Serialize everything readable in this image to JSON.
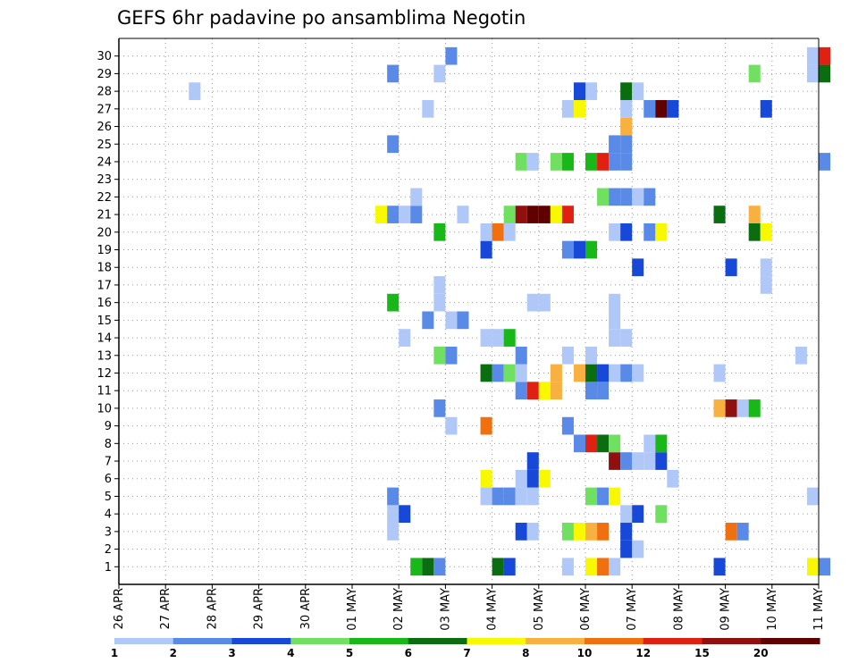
{
  "chart_data": {
    "type": "heatmap",
    "title": "GEFS 6hr padavine po ansamblima Negotin",
    "xlabel": "",
    "ylabel": "",
    "x_tick_labels": [
      "26 APR",
      "27 APR",
      "28 APR",
      "29 APR",
      "30 APR",
      "01 MAY",
      "02 MAY",
      "03 MAY",
      "04 MAY",
      "05 MAY",
      "06 MAY",
      "07 MAY",
      "08 MAY",
      "09 MAY",
      "10 MAY",
      "11 MAY"
    ],
    "y_tick_labels": [
      "1",
      "2",
      "3",
      "4",
      "5",
      "6",
      "7",
      "8",
      "9",
      "10",
      "11",
      "12",
      "13",
      "14",
      "15",
      "16",
      "17",
      "18",
      "19",
      "20",
      "21",
      "22",
      "23",
      "24",
      "25",
      "26",
      "27",
      "28",
      "29",
      "30"
    ],
    "x_unit": "6-hour steps from 26 APR 00Z",
    "x_range_steps": [
      0,
      60
    ],
    "y_range_members": [
      0,
      31
    ],
    "grid": true,
    "colorbar": {
      "labels": [
        "1",
        "2",
        "3",
        "4",
        "5",
        "6",
        "7",
        "8",
        "10",
        "12",
        "15",
        "20"
      ],
      "colors": [
        "#b0c8f8",
        "#5a8ae8",
        "#1848d8",
        "#70e060",
        "#18b818",
        "#0a6e10",
        "#f8f800",
        "#f8b040",
        "#f07010",
        "#e02010",
        "#901010",
        "#600000"
      ]
    },
    "series": [
      {
        "member": 1,
        "cells": [
          [
            25.5,
            5
          ],
          [
            26.5,
            6
          ],
          [
            27.5,
            2
          ],
          [
            32.5,
            6
          ],
          [
            33.5,
            3
          ],
          [
            38.5,
            1
          ],
          [
            40.5,
            7
          ],
          [
            41.5,
            9
          ],
          [
            42.5,
            1
          ],
          [
            51.5,
            3
          ],
          [
            59.5,
            7
          ],
          [
            60.5,
            2
          ]
        ]
      },
      {
        "member": 2,
        "cells": [
          [
            43.5,
            3
          ],
          [
            44.5,
            1
          ]
        ]
      },
      {
        "member": 3,
        "cells": [
          [
            23.5,
            1
          ],
          [
            34.5,
            3
          ],
          [
            35.5,
            1
          ],
          [
            38.5,
            4
          ],
          [
            39.5,
            7
          ],
          [
            40.5,
            8
          ],
          [
            41.5,
            9
          ],
          [
            43.5,
            3
          ],
          [
            52.5,
            9
          ],
          [
            53.5,
            2
          ]
        ]
      },
      {
        "member": 4,
        "cells": [
          [
            23.5,
            1
          ],
          [
            24.5,
            3
          ],
          [
            43.5,
            1
          ],
          [
            44.5,
            3
          ],
          [
            46.5,
            4
          ]
        ]
      },
      {
        "member": 5,
        "cells": [
          [
            23.5,
            2
          ],
          [
            31.5,
            1
          ],
          [
            32.5,
            2
          ],
          [
            33.5,
            2
          ],
          [
            34.5,
            1
          ],
          [
            35.5,
            1
          ],
          [
            40.5,
            4
          ],
          [
            41.5,
            2
          ],
          [
            42.5,
            7
          ],
          [
            59.5,
            1
          ]
        ]
      },
      {
        "member": 6,
        "cells": [
          [
            31.5,
            7
          ],
          [
            34.5,
            1
          ],
          [
            35.5,
            3
          ],
          [
            36.5,
            7
          ],
          [
            47.5,
            1
          ]
        ]
      },
      {
        "member": 7,
        "cells": [
          [
            35.5,
            3
          ],
          [
            42.5,
            11
          ],
          [
            43.5,
            2
          ],
          [
            44.5,
            1
          ],
          [
            45.5,
            1
          ],
          [
            46.5,
            3
          ]
        ]
      },
      {
        "member": 8,
        "cells": [
          [
            39.5,
            2
          ],
          [
            40.5,
            10
          ],
          [
            41.5,
            6
          ],
          [
            42.5,
            4
          ],
          [
            45.5,
            1
          ],
          [
            46.5,
            5
          ]
        ]
      },
      {
        "member": 9,
        "cells": [
          [
            28.5,
            1
          ],
          [
            31.5,
            9
          ],
          [
            38.5,
            2
          ]
        ]
      },
      {
        "member": 10,
        "cells": [
          [
            27.5,
            2
          ],
          [
            51.5,
            8
          ],
          [
            52.5,
            11
          ],
          [
            53.5,
            1
          ],
          [
            54.5,
            5
          ]
        ]
      },
      {
        "member": 11,
        "cells": [
          [
            34.5,
            2
          ],
          [
            35.5,
            10
          ],
          [
            36.5,
            7
          ],
          [
            37.5,
            8
          ],
          [
            40.5,
            2
          ],
          [
            41.5,
            2
          ]
        ]
      },
      {
        "member": 12,
        "cells": [
          [
            31.5,
            6
          ],
          [
            32.5,
            2
          ],
          [
            33.5,
            4
          ],
          [
            34.5,
            1
          ],
          [
            37.5,
            8
          ],
          [
            39.5,
            8
          ],
          [
            40.5,
            6
          ],
          [
            41.5,
            3
          ],
          [
            42.5,
            1
          ],
          [
            43.5,
            2
          ],
          [
            44.5,
            1
          ],
          [
            51.5,
            1
          ]
        ]
      },
      {
        "member": 13,
        "cells": [
          [
            27.5,
            4
          ],
          [
            28.5,
            2
          ],
          [
            34.5,
            2
          ],
          [
            38.5,
            1
          ],
          [
            40.5,
            1
          ],
          [
            58.5,
            1
          ]
        ]
      },
      {
        "member": 14,
        "cells": [
          [
            24.5,
            1
          ],
          [
            31.5,
            1
          ],
          [
            32.5,
            1
          ],
          [
            33.5,
            5
          ],
          [
            42.5,
            1
          ],
          [
            43.5,
            1
          ]
        ]
      },
      {
        "member": 15,
        "cells": [
          [
            26.5,
            2
          ],
          [
            28.5,
            1
          ],
          [
            29.5,
            2
          ],
          [
            42.5,
            1
          ]
        ]
      },
      {
        "member": 16,
        "cells": [
          [
            23.5,
            5
          ],
          [
            27.5,
            1
          ],
          [
            35.5,
            1
          ],
          [
            36.5,
            1
          ],
          [
            42.5,
            1
          ]
        ]
      },
      {
        "member": 17,
        "cells": [
          [
            27.5,
            1
          ],
          [
            55.5,
            1
          ]
        ]
      },
      {
        "member": 18,
        "cells": [
          [
            44.5,
            3
          ],
          [
            52.5,
            3
          ],
          [
            55.5,
            1
          ]
        ]
      },
      {
        "member": 19,
        "cells": [
          [
            31.5,
            3
          ],
          [
            38.5,
            2
          ],
          [
            39.5,
            3
          ],
          [
            40.5,
            5
          ]
        ]
      },
      {
        "member": 20,
        "cells": [
          [
            27.5,
            5
          ],
          [
            31.5,
            1
          ],
          [
            32.5,
            9
          ],
          [
            33.5,
            1
          ],
          [
            42.5,
            1
          ],
          [
            43.5,
            3
          ],
          [
            45.5,
            2
          ],
          [
            46.5,
            7
          ],
          [
            54.5,
            6
          ],
          [
            55.5,
            7
          ]
        ]
      },
      {
        "member": 21,
        "cells": [
          [
            22.5,
            7
          ],
          [
            23.5,
            2
          ],
          [
            24.5,
            1
          ],
          [
            25.5,
            2
          ],
          [
            29.5,
            1
          ],
          [
            33.5,
            4
          ],
          [
            34.5,
            11
          ],
          [
            35.5,
            12
          ],
          [
            36.5,
            12
          ],
          [
            37.5,
            7
          ],
          [
            38.5,
            10
          ],
          [
            51.5,
            6
          ],
          [
            54.5,
            8
          ]
        ]
      },
      {
        "member": 22,
        "cells": [
          [
            25.5,
            1
          ],
          [
            41.5,
            4
          ],
          [
            42.5,
            2
          ],
          [
            43.5,
            2
          ],
          [
            44.5,
            1
          ],
          [
            45.5,
            2
          ]
        ]
      },
      {
        "member": 24,
        "cells": [
          [
            34.5,
            4
          ],
          [
            35.5,
            1
          ],
          [
            37.5,
            4
          ],
          [
            38.5,
            5
          ],
          [
            40.5,
            5
          ],
          [
            41.5,
            10
          ],
          [
            42.5,
            2
          ],
          [
            43.5,
            2
          ],
          [
            60.5,
            2
          ]
        ]
      },
      {
        "member": 25,
        "cells": [
          [
            23.5,
            2
          ],
          [
            42.5,
            2
          ],
          [
            43.5,
            2
          ]
        ]
      },
      {
        "member": 26,
        "cells": [
          [
            43.5,
            8
          ]
        ]
      },
      {
        "member": 27,
        "cells": [
          [
            26.5,
            1
          ],
          [
            38.5,
            1
          ],
          [
            39.5,
            7
          ],
          [
            43.5,
            1
          ],
          [
            45.5,
            2
          ],
          [
            46.5,
            12
          ],
          [
            47.5,
            3
          ],
          [
            55.5,
            3
          ]
        ]
      },
      {
        "member": 28,
        "cells": [
          [
            6.5,
            1
          ],
          [
            39.5,
            3
          ],
          [
            40.5,
            1
          ],
          [
            43.5,
            6
          ],
          [
            44.5,
            1
          ]
        ]
      },
      {
        "member": 29,
        "cells": [
          [
            23.5,
            2
          ],
          [
            27.5,
            1
          ],
          [
            54.5,
            4
          ],
          [
            59.5,
            1
          ],
          [
            60.5,
            6
          ]
        ]
      },
      {
        "member": 30,
        "cells": [
          [
            28.5,
            2
          ],
          [
            59.5,
            1
          ],
          [
            60.5,
            10
          ]
        ]
      }
    ]
  }
}
